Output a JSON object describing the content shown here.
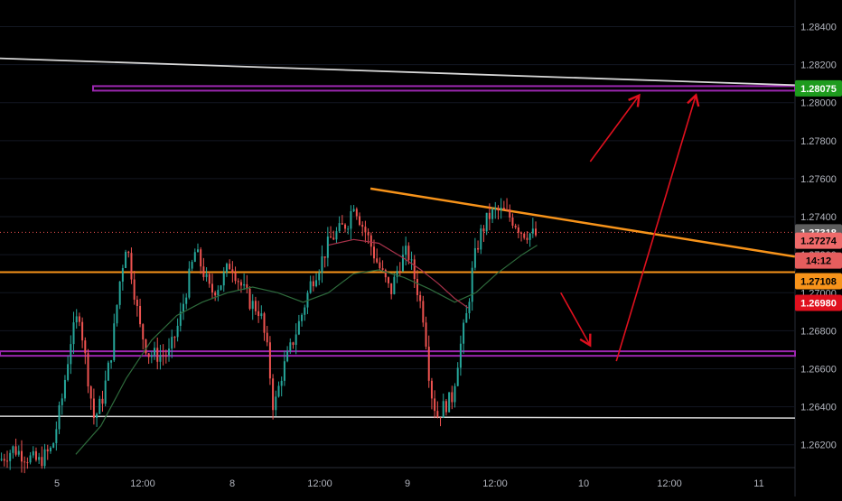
{
  "chart_data": {
    "type": "candlestick",
    "y_ticks": [
      "1.26200",
      "1.26400",
      "1.26600",
      "1.26800",
      "1.27000",
      "1.27200",
      "1.27400",
      "1.27600",
      "1.27800",
      "1.28000",
      "1.28200",
      "1.28400"
    ],
    "x_ticks": [
      "5",
      "12:00",
      "8",
      "12:00",
      "9",
      "12:00",
      "10",
      "12:00",
      "11"
    ],
    "ylim": [
      1.2608,
      1.2854
    ],
    "price_badges": [
      {
        "label": "1.28075",
        "bg": "#1e9b1e",
        "fg": "#ffffff"
      },
      {
        "label": "1.27318",
        "bg": "#5d5d5d",
        "fg": "#ffffff"
      },
      {
        "label": "1.27274",
        "bg": "#ef6a6a",
        "fg": "#000000"
      },
      {
        "label": "14:12",
        "bg": "#e55d5d",
        "fg": "#000000"
      },
      {
        "label": "1.27108",
        "bg": "#f7931a",
        "fg": "#000000"
      },
      {
        "label": "1.26980",
        "bg": "#e0101e",
        "fg": "#ffffff"
      }
    ],
    "levels": {
      "resistance": 1.28075,
      "support_orange": 1.27108,
      "support_purple": 1.2668,
      "lower_white": 1.2635
    },
    "trendlines": [
      {
        "color": "#d7d7d7",
        "from": [
          0.0,
          1.28233
        ],
        "to": [
          0.944,
          1.28092
        ]
      },
      {
        "color": "#f7931a",
        "from": [
          0.44,
          1.27548
        ],
        "to": [
          0.944,
          1.2719
        ]
      }
    ],
    "arrows": [
      {
        "color": "#e0101e",
        "from": [
          0.701,
          1.2769
        ],
        "to": [
          0.758,
          1.28032
        ]
      },
      {
        "color": "#e0101e",
        "from": [
          0.732,
          1.2664
        ],
        "to": [
          0.826,
          1.28032
        ]
      },
      {
        "color": "#e0101e",
        "from": [
          0.666,
          1.27
        ],
        "to": [
          0.7,
          1.2673
        ]
      }
    ],
    "price_path": [
      [
        0.0,
        1.2612
      ],
      [
        0.016,
        1.2618
      ],
      [
        0.03,
        1.2614
      ],
      [
        0.046,
        1.2611
      ],
      [
        0.062,
        1.2618
      ],
      [
        0.074,
        1.2645
      ],
      [
        0.084,
        1.2675
      ],
      [
        0.094,
        1.269
      ],
      [
        0.103,
        1.266
      ],
      [
        0.112,
        1.2633
      ],
      [
        0.122,
        1.2645
      ],
      [
        0.132,
        1.2668
      ],
      [
        0.142,
        1.2705
      ],
      [
        0.15,
        1.2727
      ],
      [
        0.157,
        1.2708
      ],
      [
        0.166,
        1.2682
      ],
      [
        0.176,
        1.2668
      ],
      [
        0.188,
        1.2667
      ],
      [
        0.201,
        1.2668
      ],
      [
        0.213,
        1.2685
      ],
      [
        0.224,
        1.2707
      ],
      [
        0.232,
        1.2722
      ],
      [
        0.24,
        1.2713
      ],
      [
        0.25,
        1.27
      ],
      [
        0.262,
        1.2705
      ],
      [
        0.274,
        1.2716
      ],
      [
        0.285,
        1.2705
      ],
      [
        0.297,
        1.2695
      ],
      [
        0.309,
        1.269
      ],
      [
        0.318,
        1.2668
      ],
      [
        0.325,
        1.2638
      ],
      [
        0.335,
        1.2658
      ],
      [
        0.346,
        1.2672
      ],
      [
        0.358,
        1.2688
      ],
      [
        0.369,
        1.2705
      ],
      [
        0.381,
        1.2716
      ],
      [
        0.392,
        1.2728
      ],
      [
        0.404,
        1.2733
      ],
      [
        0.414,
        1.2738
      ],
      [
        0.42,
        1.2748
      ],
      [
        0.428,
        1.2738
      ],
      [
        0.438,
        1.2728
      ],
      [
        0.446,
        1.2718
      ],
      [
        0.456,
        1.2708
      ],
      [
        0.464,
        1.27
      ],
      [
        0.474,
        1.2715
      ],
      [
        0.484,
        1.2722
      ],
      [
        0.494,
        1.2705
      ],
      [
        0.504,
        1.2685
      ],
      [
        0.511,
        1.265
      ],
      [
        0.519,
        1.2635
      ],
      [
        0.527,
        1.264
      ],
      [
        0.537,
        1.2645
      ],
      [
        0.545,
        1.2668
      ],
      [
        0.555,
        1.269
      ],
      [
        0.562,
        1.2715
      ],
      [
        0.57,
        1.273
      ],
      [
        0.58,
        1.274
      ],
      [
        0.59,
        1.2743
      ],
      [
        0.6,
        1.2742
      ],
      [
        0.61,
        1.2738
      ],
      [
        0.62,
        1.2732
      ],
      [
        0.63,
        1.2731
      ],
      [
        0.638,
        1.273
      ]
    ],
    "ma_red": [
      [
        0.39,
        1.2725
      ],
      [
        0.42,
        1.2728
      ],
      [
        0.45,
        1.2726
      ],
      [
        0.48,
        1.2718
      ],
      [
        0.5,
        1.2712
      ],
      [
        0.52,
        1.2705
      ],
      [
        0.54,
        1.2697
      ],
      [
        0.556,
        1.2692
      ]
    ],
    "ma_green": [
      [
        0.09,
        1.2615
      ],
      [
        0.12,
        1.263
      ],
      [
        0.15,
        1.2655
      ],
      [
        0.18,
        1.2675
      ],
      [
        0.21,
        1.2688
      ],
      [
        0.24,
        1.2695
      ],
      [
        0.27,
        1.27
      ],
      [
        0.3,
        1.2703
      ],
      [
        0.33,
        1.27
      ],
      [
        0.36,
        1.2695
      ],
      [
        0.39,
        1.27
      ],
      [
        0.42,
        1.271
      ],
      [
        0.45,
        1.2712
      ],
      [
        0.48,
        1.2708
      ],
      [
        0.51,
        1.2702
      ],
      [
        0.54,
        1.2695
      ],
      [
        0.565,
        1.27
      ],
      [
        0.59,
        1.271
      ],
      [
        0.62,
        1.272
      ],
      [
        0.638,
        1.2725
      ]
    ],
    "colors": {
      "up": "#26a69a",
      "down": "#ef5350",
      "grid": "#131722",
      "axis_text": "#b2b5be",
      "purple": "#9c27b0",
      "orange": "#f7931a",
      "white_line": "#d7d7d7",
      "red": "#e0101e"
    }
  }
}
